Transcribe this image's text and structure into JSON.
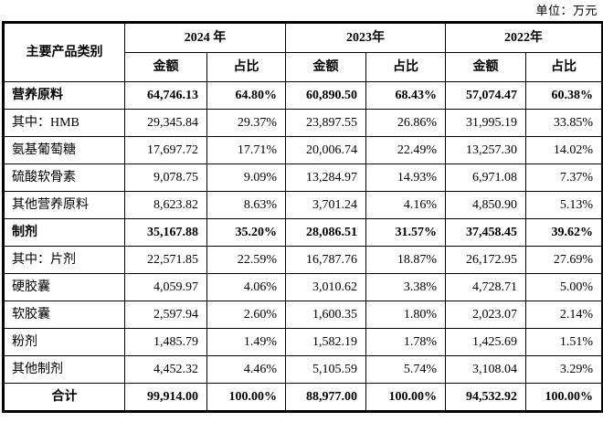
{
  "unit_label": "单位：万元",
  "table": {
    "category_header": "主要产品类别",
    "year_headers": [
      "2024 年",
      "2023年",
      "2022年"
    ],
    "sub_headers": [
      "金额",
      "占比"
    ],
    "rows": [
      {
        "label": "营养原料",
        "style": "section",
        "values": [
          "64,746.13",
          "64.80%",
          "60,890.50",
          "68.43%",
          "57,074.47",
          "60.38%"
        ]
      },
      {
        "label": "其中：HMB",
        "style": "item",
        "values": [
          "29,345.84",
          "29.37%",
          "23,897.55",
          "26.86%",
          "31,995.19",
          "33.85%"
        ]
      },
      {
        "label": "氨基葡萄糖",
        "style": "item",
        "values": [
          "17,697.72",
          "17.71%",
          "20,006.74",
          "22.49%",
          "13,257.30",
          "14.02%"
        ]
      },
      {
        "label": "硫酸软骨素",
        "style": "item",
        "values": [
          "9,078.75",
          "9.09%",
          "13,284.97",
          "14.93%",
          "6,971.08",
          "7.37%"
        ]
      },
      {
        "label": "其他营养原料",
        "style": "item",
        "values": [
          "8,623.82",
          "8.63%",
          "3,701.24",
          "4.16%",
          "4,850.90",
          "5.13%"
        ]
      },
      {
        "label": "制剂",
        "style": "section",
        "values": [
          "35,167.88",
          "35.20%",
          "28,086.51",
          "31.57%",
          "37,458.45",
          "39.62%"
        ]
      },
      {
        "label": "其中：片剂",
        "style": "item",
        "values": [
          "22,571.85",
          "22.59%",
          "16,787.76",
          "18.87%",
          "26,172.95",
          "27.69%"
        ]
      },
      {
        "label": "硬胶囊",
        "style": "item",
        "values": [
          "4,059.97",
          "4.06%",
          "3,010.62",
          "3.38%",
          "4,728.71",
          "5.00%"
        ]
      },
      {
        "label": "软胶囊",
        "style": "item",
        "values": [
          "2,597.94",
          "2.60%",
          "1,600.35",
          "1.80%",
          "2,023.07",
          "2.14%"
        ]
      },
      {
        "label": "粉剂",
        "style": "item",
        "values": [
          "1,485.79",
          "1.49%",
          "1,582.19",
          "1.78%",
          "1,425.69",
          "1.51%"
        ]
      },
      {
        "label": "其他制剂",
        "style": "item",
        "values": [
          "4,452.32",
          "4.46%",
          "5,105.59",
          "5.74%",
          "3,108.04",
          "3.29%"
        ]
      },
      {
        "label": "合计",
        "style": "total",
        "values": [
          "99,914.00",
          "100.00%",
          "88,977.00",
          "100.00%",
          "94,532.92",
          "100.00%"
        ]
      }
    ]
  }
}
